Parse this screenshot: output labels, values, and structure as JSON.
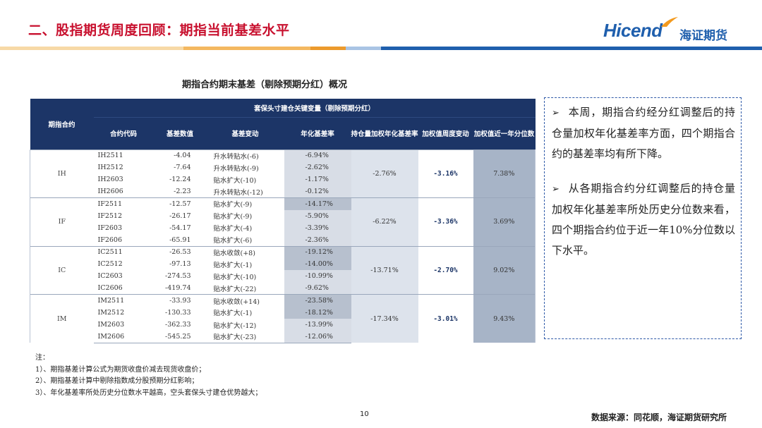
{
  "header": {
    "title": "二、股指期货周度回顾：期指当前基差水平",
    "logo_text": "Hicend",
    "logo_cn": "海证期货",
    "brand_color": "#c8102e",
    "accent_color": "#1f5fad"
  },
  "table": {
    "caption": "期指合约期末基差（剔除预期分红）概况",
    "header_group": "期指合约",
    "header_span": "套保头寸建仓关键变量（剔除预期分红）",
    "columns": [
      "合约代码",
      "基差数值",
      "基差变动",
      "年化基差率",
      "持仓量加权年化基差率",
      "加权值周度变动",
      "加权值近一年分位数"
    ],
    "groups": [
      {
        "name": "IH",
        "weighted_annualized_basis": "-2.76%",
        "weekly_change": "-3.16%",
        "one_year_percentile": "7.38%",
        "rows": [
          {
            "code": "IH2511",
            "basis": "-4.04",
            "change": "升水转贴水(-6)",
            "annualized": "-6.94%"
          },
          {
            "code": "IH2512",
            "basis": "-7.64",
            "change": "升水转贴水(-9)",
            "annualized": "-2.62%"
          },
          {
            "code": "IH2603",
            "basis": "-12.24",
            "change": "贴水扩大(-10)",
            "annualized": "-1.17%"
          },
          {
            "code": "IH2606",
            "basis": "-2.23",
            "change": "升水转贴水(-12)",
            "annualized": "-0.12%"
          }
        ]
      },
      {
        "name": "IF",
        "weighted_annualized_basis": "-6.22%",
        "weekly_change": "-3.36%",
        "one_year_percentile": "3.69%",
        "rows": [
          {
            "code": "IF2511",
            "basis": "-12.57",
            "change": "贴水扩大(-9)",
            "annualized": "-14.17%"
          },
          {
            "code": "IF2512",
            "basis": "-26.17",
            "change": "贴水扩大(-9)",
            "annualized": "-5.90%"
          },
          {
            "code": "IF2603",
            "basis": "-54.17",
            "change": "贴水扩大(-4)",
            "annualized": "-3.39%"
          },
          {
            "code": "IF2606",
            "basis": "-65.91",
            "change": "贴水扩大(-6)",
            "annualized": "-2.36%"
          }
        ]
      },
      {
        "name": "IC",
        "weighted_annualized_basis": "-13.71%",
        "weekly_change": "-2.70%",
        "one_year_percentile": "9.02%",
        "rows": [
          {
            "code": "IC2511",
            "basis": "-26.53",
            "change": "贴水收敛(+8)",
            "annualized": "-19.12%"
          },
          {
            "code": "IC2512",
            "basis": "-97.13",
            "change": "贴水扩大(-1)",
            "annualized": "-14.00%"
          },
          {
            "code": "IC2603",
            "basis": "-274.53",
            "change": "贴水扩大(-10)",
            "annualized": "-10.99%"
          },
          {
            "code": "IC2606",
            "basis": "-419.74",
            "change": "贴水扩大(-22)",
            "annualized": "-9.62%"
          }
        ]
      },
      {
        "name": "IM",
        "weighted_annualized_basis": "-17.34%",
        "weekly_change": "-3.01%",
        "one_year_percentile": "9.43%",
        "rows": [
          {
            "code": "IM2511",
            "basis": "-33.93",
            "change": "贴水收敛(+14)",
            "annualized": "-23.58%"
          },
          {
            "code": "IM2512",
            "basis": "-130.33",
            "change": "贴水扩大(-1)",
            "annualized": "-18.12%"
          },
          {
            "code": "IM2603",
            "basis": "-362.33",
            "change": "贴水扩大(-12)",
            "annualized": "-13.99%"
          },
          {
            "code": "IM2606",
            "basis": "-545.25",
            "change": "贴水扩大(-23)",
            "annualized": "-12.06%"
          }
        ]
      }
    ]
  },
  "commentary": {
    "bullet_icon": "arrow-bullet-icon",
    "paragraphs": [
      "本周，期指合约经分红调整后的持仓量加权年化基差率方面，四个期指合约的基差率均有所下降。",
      "从各期指合约分红调整后的持仓量加权年化基差率所处历史分位数来看，四个期指合约位于近一年10%分位数以下水平。"
    ]
  },
  "notes": {
    "heading": "注：",
    "items": [
      "1）、期指基差计算公式为期货收盘价减去现货收盘价；",
      "2）、期指基差计算中剔除指数成分股预期分红影响；",
      "3）、年化基差率所处历史分位数水平越高，空头套保头寸建仓优势越大；"
    ]
  },
  "footer": {
    "page_number": "10",
    "source": "数据来源：同花顺，海证期货研究所"
  }
}
